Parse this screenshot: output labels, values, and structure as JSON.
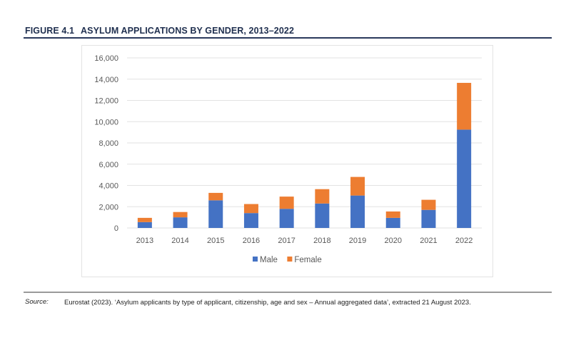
{
  "figure": {
    "number": "FIGURE 4.1",
    "title": "ASYLUM APPLICATIONS BY GENDER, 2013–2022"
  },
  "source": {
    "label": "Source:",
    "text": "Eurostat (2023). ‘Asylum applicants by type of applicant, citizenship, age and sex – Annual aggregated data’, extracted 21 August 2023."
  },
  "chart_data": {
    "type": "bar",
    "stacked": true,
    "title": "ASYLUM APPLICATIONS BY GENDER, 2013–2022",
    "xlabel": "",
    "ylabel": "",
    "categories": [
      "2013",
      "2014",
      "2015",
      "2016",
      "2017",
      "2018",
      "2019",
      "2020",
      "2021",
      "2022"
    ],
    "series": [
      {
        "name": "Male",
        "color": "#4472C4",
        "values": [
          550,
          1000,
          2600,
          1400,
          1800,
          2300,
          3050,
          950,
          1700,
          9250
        ]
      },
      {
        "name": "Female",
        "color": "#ED7D31",
        "values": [
          400,
          500,
          700,
          850,
          1150,
          1350,
          1750,
          600,
          950,
          4400
        ]
      }
    ],
    "ylim": [
      0,
      16000
    ],
    "yticks": [
      0,
      2000,
      4000,
      6000,
      8000,
      10000,
      12000,
      14000,
      16000
    ],
    "ytick_labels": [
      "0",
      "2,000",
      "4,000",
      "6,000",
      "8,000",
      "10,000",
      "12,000",
      "14,000",
      "16,000"
    ],
    "grid": true,
    "legend": {
      "position": "bottom",
      "entries": [
        "Male",
        "Female"
      ]
    }
  }
}
